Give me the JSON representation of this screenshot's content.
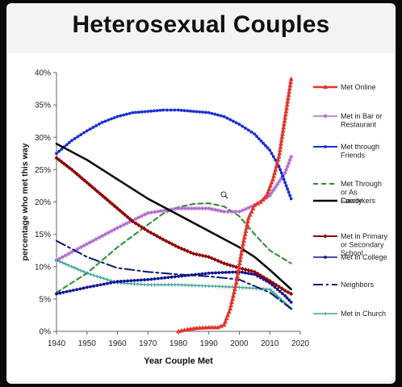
{
  "slide_title": "Heterosexual Couples",
  "chart_data": {
    "type": "line",
    "xlabel": "Year Couple Met",
    "ylabel": "percentage who met this way",
    "xlim": [
      1940,
      2020
    ],
    "ylim": [
      0,
      40
    ],
    "x_ticks": [
      "1940",
      "1950",
      "1960",
      "1970",
      "1980",
      "1990",
      "2000",
      "2010",
      "2020"
    ],
    "y_ticks": [
      "0%",
      "5%",
      "10%",
      "15%",
      "20%",
      "25%",
      "30%",
      "35%",
      "40%"
    ],
    "grid": false,
    "legend_position": "right",
    "series": [
      {
        "name": "Met Online",
        "color": "#e3342a",
        "style": "solid",
        "marker": "triangle",
        "width": 2.5,
        "x": [
          1980,
          1983,
          1986,
          1990,
          1993,
          1995,
          1997,
          1999,
          2001,
          2003,
          2005,
          2007,
          2009,
          2011,
          2013,
          2015,
          2017
        ],
        "y": [
          0,
          0.3,
          0.5,
          0.6,
          0.6,
          1.0,
          3.5,
          7.5,
          13.0,
          17.5,
          19.5,
          20.0,
          21.0,
          23.5,
          27.0,
          33.0,
          39.0
        ]
      },
      {
        "name": "Met in Bar or Restaurant",
        "color": "#b068c9",
        "style": "solid",
        "marker": "star",
        "width": 1.5,
        "x": [
          1940,
          1950,
          1960,
          1970,
          1980,
          1990,
          1995,
          2000,
          2005,
          2010,
          2015,
          2017
        ],
        "y": [
          11.0,
          13.5,
          16.0,
          18.3,
          19.0,
          19.0,
          18.5,
          18.5,
          19.5,
          21.0,
          24.5,
          27.0
        ]
      },
      {
        "name": "Met through Friends",
        "color": "#1a2fd6",
        "style": "solid",
        "marker": "circle",
        "width": 2,
        "x": [
          1940,
          1945,
          1950,
          1955,
          1960,
          1965,
          1970,
          1975,
          1980,
          1985,
          1990,
          1995,
          2000,
          2005,
          2010,
          2013,
          2015,
          2017
        ],
        "y": [
          27.5,
          29.5,
          31.0,
          32.3,
          33.2,
          33.8,
          34.0,
          34.2,
          34.2,
          34.0,
          33.8,
          33.2,
          32.0,
          30.5,
          28.0,
          25.5,
          23.0,
          20.5
        ]
      },
      {
        "name": "Met Through or As Coworkers",
        "color": "#2e8b2e",
        "style": "dashed",
        "marker": "none",
        "width": 2,
        "x": [
          1940,
          1950,
          1960,
          1970,
          1975,
          1980,
          1985,
          1990,
          1995,
          2000,
          2005,
          2010,
          2017
        ],
        "y": [
          6.0,
          9.0,
          13.0,
          16.5,
          18.2,
          19.2,
          19.7,
          19.8,
          19.3,
          17.8,
          15.0,
          12.5,
          10.5
        ]
      },
      {
        "name": "Family",
        "color": "#000000",
        "style": "solid",
        "marker": "none",
        "width": 2.5,
        "x": [
          1940,
          1950,
          1960,
          1970,
          1980,
          1990,
          2000,
          2005,
          2010,
          2017
        ],
        "y": [
          29.0,
          26.5,
          23.5,
          20.5,
          18.0,
          15.5,
          13.0,
          11.5,
          9.5,
          6.5
        ]
      },
      {
        "name": "Met in Primary or Secondary School",
        "color": "#8b0000",
        "style": "solid",
        "marker": "diamond",
        "width": 2,
        "x": [
          1940,
          1945,
          1950,
          1955,
          1960,
          1965,
          1970,
          1975,
          1980,
          1985,
          1990,
          1995,
          2000,
          2005,
          2010,
          2015,
          2017
        ],
        "y": [
          26.8,
          25.0,
          23.0,
          21.0,
          19.0,
          17.0,
          15.5,
          14.2,
          13.0,
          12.0,
          11.5,
          10.5,
          9.8,
          9.2,
          7.8,
          6.3,
          5.8
        ]
      },
      {
        "name": "Met in College",
        "color": "#101090",
        "style": "solid",
        "marker": "circle",
        "width": 1.5,
        "x": [
          1940,
          1950,
          1960,
          1970,
          1980,
          1990,
          2000,
          2005,
          2010,
          2015,
          2017
        ],
        "y": [
          5.8,
          6.8,
          7.7,
          8.0,
          8.5,
          9.0,
          9.2,
          8.8,
          7.5,
          5.5,
          4.5
        ]
      },
      {
        "name": "Neighbors",
        "color": "#0a1a6e",
        "style": "dashdot",
        "marker": "none",
        "width": 2,
        "x": [
          1940,
          1950,
          1960,
          1970,
          1980,
          1990,
          2000,
          2010,
          2017
        ],
        "y": [
          14.0,
          11.5,
          9.8,
          9.2,
          8.8,
          8.5,
          8.0,
          6.0,
          3.5
        ]
      },
      {
        "name": "Met in Church",
        "color": "#3fa39b",
        "style": "solid",
        "marker": "plus",
        "width": 1.5,
        "x": [
          1940,
          1950,
          1960,
          1970,
          1980,
          1990,
          2000,
          2010,
          2017
        ],
        "y": [
          11.0,
          9.0,
          7.5,
          7.2,
          7.2,
          7.0,
          6.8,
          6.5,
          3.5
        ]
      }
    ],
    "legend": [
      {
        "lines": [
          "Met Online"
        ],
        "series": 0
      },
      {
        "lines": [
          "Met in Bar or",
          "Restaurant"
        ],
        "series": 1
      },
      {
        "lines": [
          "Met through",
          "Friends"
        ],
        "series": 2
      },
      {
        "lines": [
          "Met Through",
          "or As",
          "Coworkers"
        ],
        "series": 3
      },
      {
        "lines": [
          "Family"
        ],
        "series": 4
      },
      {
        "lines": [
          "Met in Primary",
          "or Secondary",
          "School"
        ],
        "series": 5
      },
      {
        "lines": [
          "Met in College"
        ],
        "series": 6
      },
      {
        "lines": [
          "Neighbors"
        ],
        "series": 7
      },
      {
        "lines": [
          "Met in Church"
        ],
        "series": 8
      }
    ]
  }
}
